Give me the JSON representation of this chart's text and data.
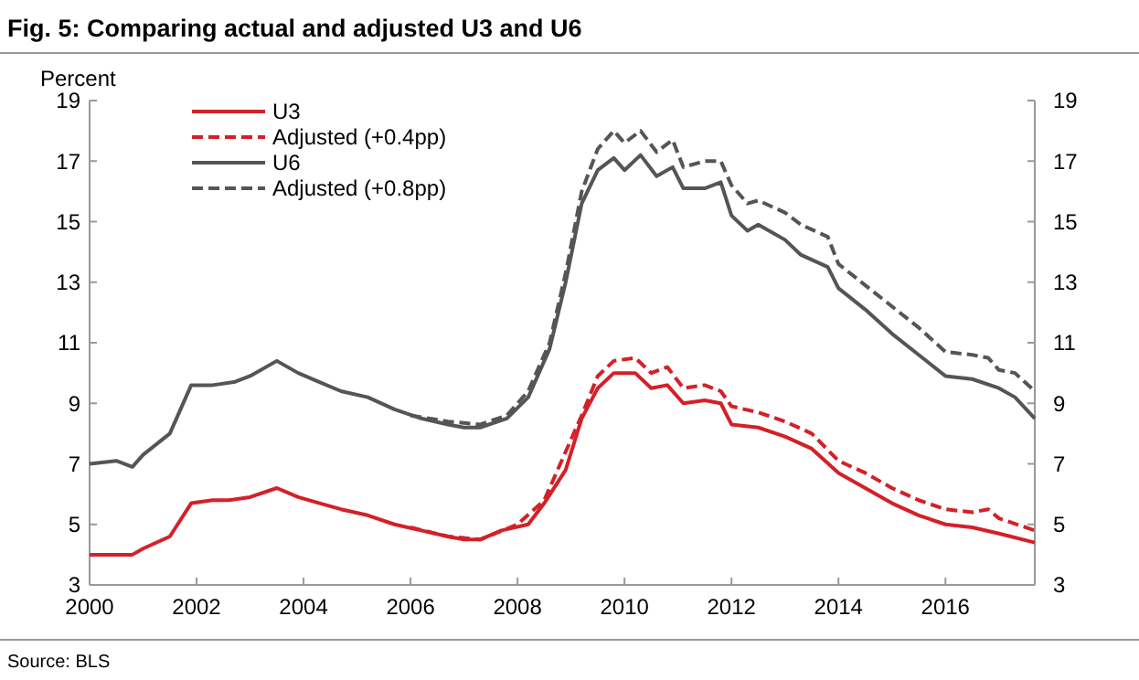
{
  "chart_data": {
    "type": "line",
    "title": "Fig. 5: Comparing actual and adjusted U3 and U6",
    "ylabel": "Percent",
    "xlim": [
      2000,
      2017.67
    ],
    "xticks": [
      2000,
      2002,
      2004,
      2006,
      2008,
      2010,
      2012,
      2014,
      2016
    ],
    "ylim": [
      3,
      19
    ],
    "yticks": [
      3,
      5,
      7,
      9,
      11,
      13,
      15,
      17,
      19
    ],
    "y2lim": [
      3,
      19
    ],
    "y2ticks": [
      3,
      5,
      7,
      9,
      11,
      13,
      15,
      17,
      19
    ],
    "legend": "top left",
    "grid": false,
    "annotations": [
      "Source: BLS"
    ],
    "series": [
      {
        "name": "U3",
        "color": "#d42027",
        "line_style": "solid",
        "x": [
          2000,
          2000.3,
          2000.8,
          2001.0,
          2001.5,
          2001.9,
          2002.3,
          2002.6,
          2003.0,
          2003.5,
          2003.9,
          2004.3,
          2004.7,
          2005.2,
          2005.7,
          2006.2,
          2006.7,
          2007.0,
          2007.3,
          2007.7,
          2008.2,
          2008.5,
          2008.9,
          2009.2,
          2009.5,
          2009.8,
          2010.2,
          2010.5,
          2010.8,
          2011.1,
          2011.5,
          2011.8,
          2012.0,
          2012.5,
          2013.0,
          2013.5,
          2014.0,
          2014.5,
          2015.0,
          2015.5,
          2016.0,
          2016.5,
          2017.0,
          2017.67
        ],
        "values": [
          4.0,
          4.0,
          4.0,
          4.2,
          4.6,
          5.7,
          5.8,
          5.8,
          5.9,
          6.2,
          5.9,
          5.7,
          5.5,
          5.3,
          5.0,
          4.8,
          4.6,
          4.5,
          4.5,
          4.8,
          5.0,
          5.7,
          6.8,
          8.5,
          9.5,
          10.0,
          10.0,
          9.5,
          9.6,
          9.0,
          9.1,
          9.0,
          8.3,
          8.2,
          7.9,
          7.5,
          6.7,
          6.2,
          5.7,
          5.3,
          5.0,
          4.9,
          4.7,
          4.4
        ]
      },
      {
        "name": "Adjusted (+0.4pp)",
        "color": "#d42027",
        "line_style": "dashed",
        "x": [
          2006.0,
          2006.7,
          2007.3,
          2008.0,
          2008.5,
          2009.2,
          2009.5,
          2009.8,
          2010.2,
          2010.5,
          2010.8,
          2011.1,
          2011.5,
          2011.8,
          2012.0,
          2012.5,
          2013.0,
          2013.5,
          2014.0,
          2014.5,
          2015.0,
          2015.5,
          2016.0,
          2016.5,
          2016.8,
          2017.0,
          2017.67
        ],
        "values": [
          4.9,
          4.6,
          4.5,
          5.0,
          5.8,
          8.6,
          9.9,
          10.4,
          10.5,
          10.0,
          10.2,
          9.5,
          9.6,
          9.4,
          8.9,
          8.7,
          8.4,
          8.0,
          7.1,
          6.7,
          6.2,
          5.8,
          5.5,
          5.4,
          5.5,
          5.2,
          4.8
        ]
      },
      {
        "name": "U6",
        "color": "#555555",
        "line_style": "solid",
        "x": [
          2000,
          2000.5,
          2000.8,
          2001.0,
          2001.5,
          2001.9,
          2002.3,
          2002.7,
          2003.0,
          2003.5,
          2003.9,
          2004.3,
          2004.7,
          2005.2,
          2005.7,
          2006.2,
          2006.7,
          2007.0,
          2007.3,
          2007.8,
          2008.2,
          2008.6,
          2008.9,
          2009.2,
          2009.5,
          2009.8,
          2010.0,
          2010.3,
          2010.6,
          2010.9,
          2011.1,
          2011.5,
          2011.8,
          2012.0,
          2012.3,
          2012.5,
          2013.0,
          2013.3,
          2013.8,
          2014.0,
          2014.5,
          2015.0,
          2015.5,
          2016.0,
          2016.5,
          2017.0,
          2017.3,
          2017.67
        ],
        "values": [
          7.0,
          7.1,
          6.9,
          7.3,
          8.0,
          9.6,
          9.6,
          9.7,
          9.9,
          10.4,
          10.0,
          9.7,
          9.4,
          9.2,
          8.8,
          8.5,
          8.3,
          8.2,
          8.2,
          8.5,
          9.2,
          10.8,
          13.0,
          15.6,
          16.7,
          17.1,
          16.7,
          17.2,
          16.5,
          16.8,
          16.1,
          16.1,
          16.3,
          15.2,
          14.7,
          14.9,
          14.4,
          13.9,
          13.5,
          12.8,
          12.1,
          11.3,
          10.6,
          9.9,
          9.8,
          9.5,
          9.2,
          8.5
        ]
      },
      {
        "name": "Adjusted (+0.8pp)",
        "color": "#555555",
        "line_style": "dashed",
        "x": [
          2006.0,
          2006.7,
          2007.3,
          2007.8,
          2008.2,
          2008.6,
          2008.9,
          2009.2,
          2009.5,
          2009.8,
          2010.0,
          2010.3,
          2010.6,
          2010.9,
          2011.1,
          2011.5,
          2011.8,
          2012.0,
          2012.3,
          2012.5,
          2013.0,
          2013.3,
          2013.8,
          2014.0,
          2014.5,
          2015.0,
          2015.5,
          2016.0,
          2016.5,
          2016.8,
          2017.0,
          2017.3,
          2017.67
        ],
        "values": [
          8.6,
          8.4,
          8.3,
          8.6,
          9.4,
          11.0,
          13.3,
          16.0,
          17.4,
          18.0,
          17.6,
          18.0,
          17.3,
          17.7,
          16.8,
          17.0,
          17.0,
          16.2,
          15.6,
          15.7,
          15.3,
          14.9,
          14.5,
          13.6,
          12.9,
          12.2,
          11.5,
          10.7,
          10.6,
          10.5,
          10.1,
          10.0,
          9.4
        ]
      }
    ]
  }
}
